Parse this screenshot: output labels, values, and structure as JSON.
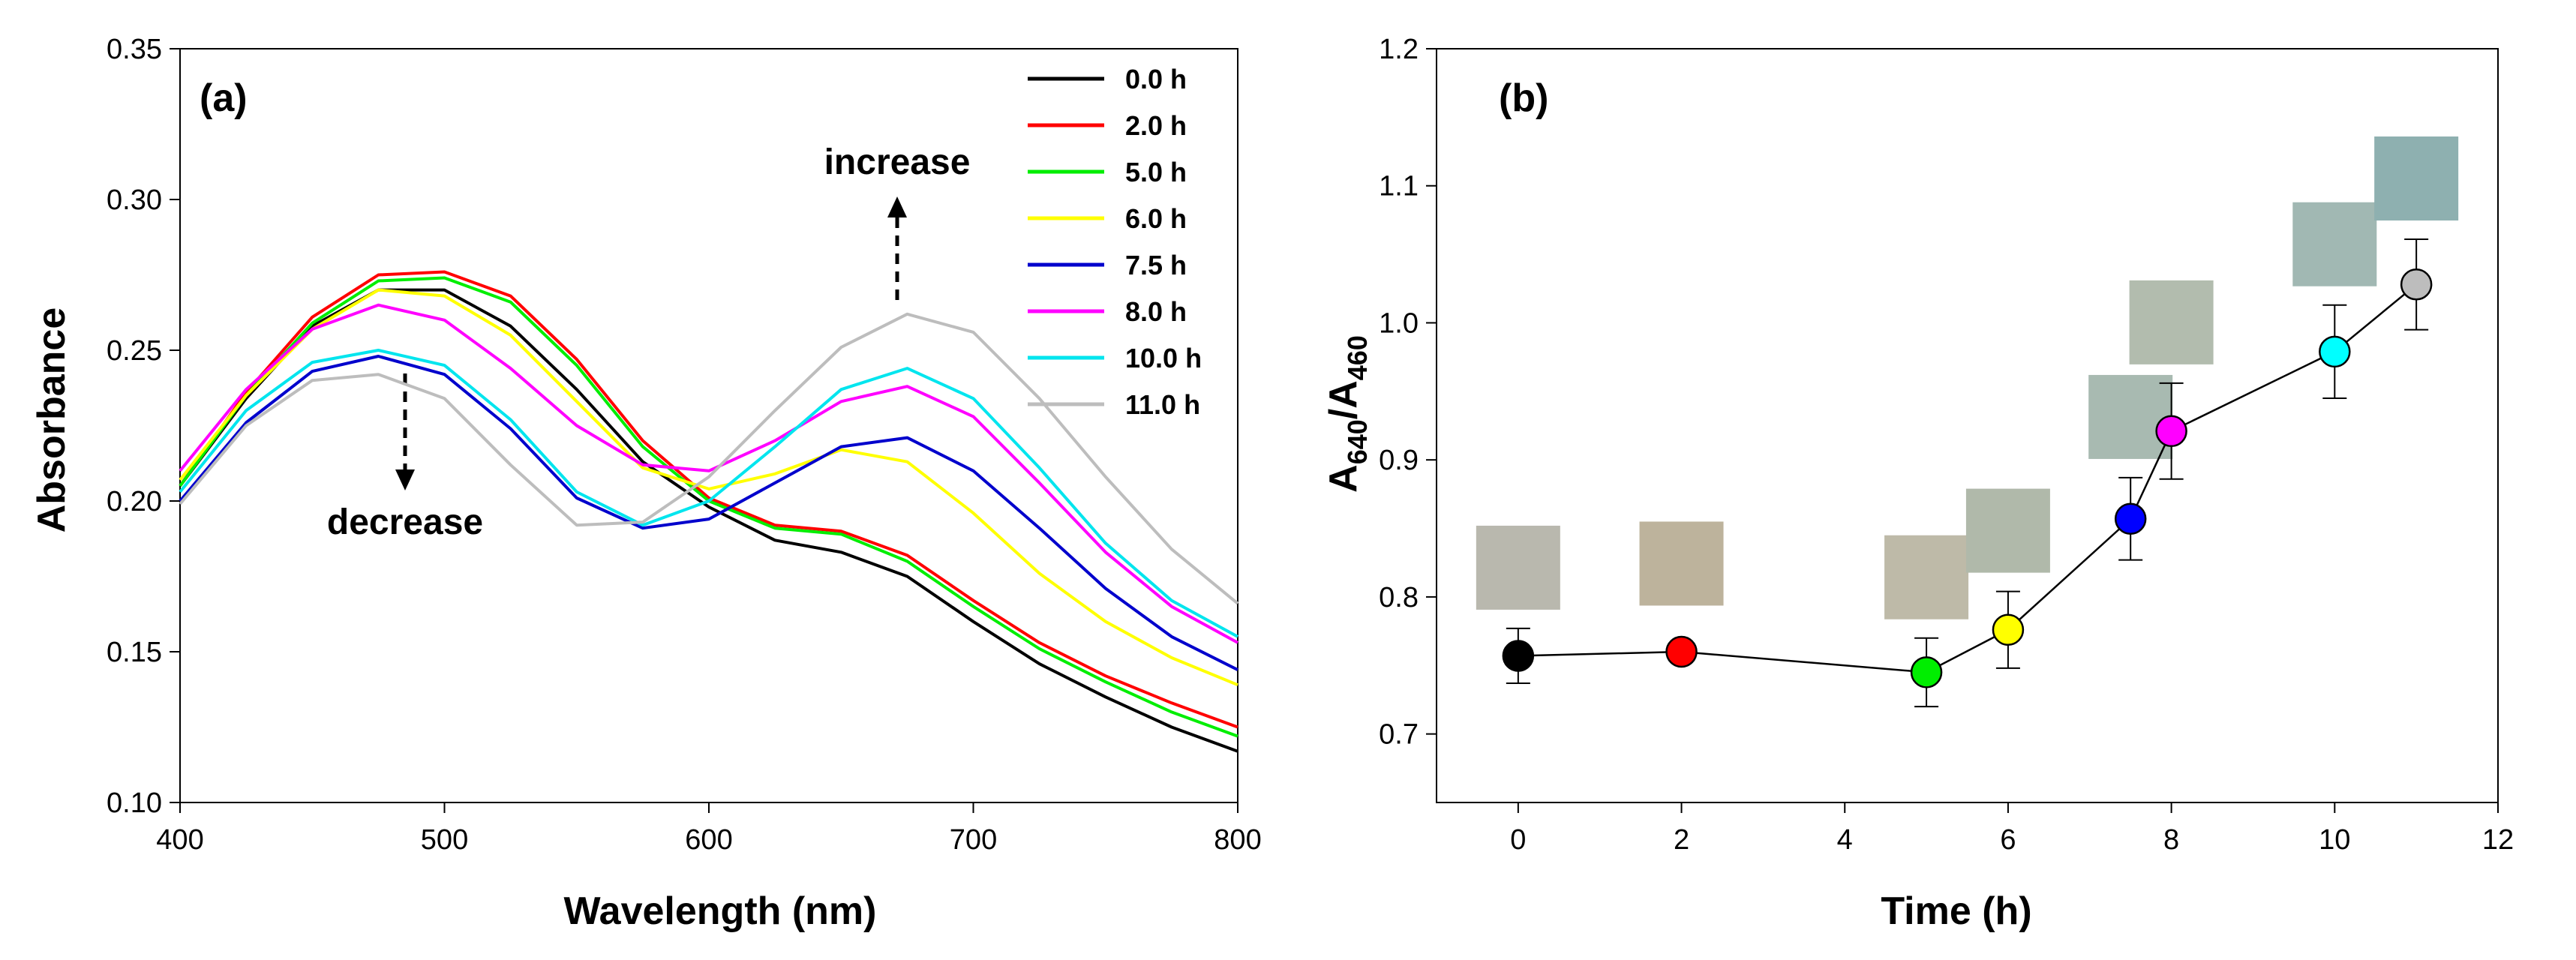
{
  "chart_data": [
    {
      "type": "line",
      "panel_label": "(a)",
      "xlabel": "Wavelength (nm)",
      "ylabel": "Absorbance",
      "xlim": [
        400,
        800
      ],
      "ylim": [
        0.1,
        0.35
      ],
      "xticks": [
        400,
        500,
        600,
        700,
        800
      ],
      "yticks": [
        "0.10",
        "0.15",
        "0.20",
        "0.25",
        "0.30",
        "0.35"
      ],
      "grid": false,
      "legend_position": "top-right",
      "x": [
        400,
        425,
        450,
        475,
        500,
        525,
        550,
        575,
        600,
        625,
        650,
        675,
        700,
        725,
        750,
        775,
        800
      ],
      "series": [
        {
          "name": "0.0 h",
          "color": "#000000",
          "values": [
            0.205,
            0.234,
            0.258,
            0.27,
            0.27,
            0.258,
            0.237,
            0.213,
            0.198,
            0.187,
            0.183,
            0.175,
            0.16,
            0.146,
            0.135,
            0.125,
            0.117
          ]
        },
        {
          "name": "2.0 h",
          "color": "#ff0000",
          "values": [
            0.205,
            0.236,
            0.261,
            0.275,
            0.276,
            0.268,
            0.247,
            0.22,
            0.201,
            0.192,
            0.19,
            0.182,
            0.167,
            0.153,
            0.142,
            0.133,
            0.125
          ]
        },
        {
          "name": "5.0 h",
          "color": "#00ee00",
          "values": [
            0.205,
            0.235,
            0.259,
            0.273,
            0.274,
            0.266,
            0.245,
            0.218,
            0.2,
            0.191,
            0.189,
            0.18,
            0.165,
            0.151,
            0.14,
            0.13,
            0.122
          ]
        },
        {
          "name": "6.0 h",
          "color": "#ffff00",
          "values": [
            0.207,
            0.235,
            0.257,
            0.27,
            0.268,
            0.255,
            0.233,
            0.211,
            0.204,
            0.209,
            0.217,
            0.213,
            0.196,
            0.176,
            0.16,
            0.148,
            0.139
          ]
        },
        {
          "name": "7.5 h",
          "color": "#0000cc",
          "values": [
            0.2,
            0.226,
            0.243,
            0.248,
            0.242,
            0.224,
            0.201,
            0.191,
            0.194,
            0.206,
            0.218,
            0.221,
            0.21,
            0.191,
            0.171,
            0.155,
            0.144
          ]
        },
        {
          "name": "8.0 h",
          "color": "#ff00ff",
          "values": [
            0.21,
            0.237,
            0.257,
            0.265,
            0.26,
            0.244,
            0.225,
            0.212,
            0.21,
            0.22,
            0.233,
            0.238,
            0.228,
            0.206,
            0.183,
            0.165,
            0.153
          ]
        },
        {
          "name": "10.0 h",
          "color": "#00e5ee",
          "values": [
            0.203,
            0.23,
            0.246,
            0.25,
            0.245,
            0.227,
            0.203,
            0.192,
            0.2,
            0.218,
            0.237,
            0.244,
            0.234,
            0.211,
            0.186,
            0.167,
            0.155
          ]
        },
        {
          "name": "11.0 h",
          "color": "#bdbdbd",
          "values": [
            0.199,
            0.225,
            0.24,
            0.242,
            0.234,
            0.212,
            0.192,
            0.193,
            0.208,
            0.23,
            0.251,
            0.262,
            0.256,
            0.234,
            0.208,
            0.184,
            0.166
          ]
        }
      ],
      "annotations": {
        "increase": "increase",
        "decrease": "decrease"
      }
    },
    {
      "type": "scatter",
      "panel_label": "(b)",
      "xlabel": "Time (h)",
      "ylabel_main": "A",
      "ylabel_sub1": "640",
      "ylabel_sep": "/A",
      "ylabel_sub2": "460",
      "xlim": [
        -1,
        12
      ],
      "ylim": [
        0.65,
        1.2
      ],
      "xticks": [
        0,
        2,
        4,
        6,
        8,
        10,
        12
      ],
      "yticks": [
        "0.7",
        "0.8",
        "0.9",
        "1.0",
        "1.1",
        "1.2"
      ],
      "grid": false,
      "points": [
        {
          "x": 0,
          "y": 0.757,
          "err": 0.02,
          "color": "#000000",
          "swatch": "#b9b8ae"
        },
        {
          "x": 2,
          "y": 0.76,
          "err": 0.0,
          "color": "#ff0000",
          "swatch": "#bdb39c"
        },
        {
          "x": 5,
          "y": 0.745,
          "err": 0.025,
          "color": "#00ee00",
          "swatch": "#bebaa8"
        },
        {
          "x": 6,
          "y": 0.776,
          "err": 0.028,
          "color": "#ffff00",
          "swatch": "#b0b9aa"
        },
        {
          "x": 7.5,
          "y": 0.857,
          "err": 0.03,
          "color": "#0000ff",
          "swatch": "#a8bab1"
        },
        {
          "x": 8,
          "y": 0.921,
          "err": 0.035,
          "color": "#ff00ff",
          "swatch": "#b2bcae"
        },
        {
          "x": 10,
          "y": 0.979,
          "err": 0.034,
          "color": "#00ffff",
          "swatch": "#a1b8b3"
        },
        {
          "x": 11,
          "y": 1.028,
          "err": 0.033,
          "color": "#bdbdbd",
          "swatch": "#8eb0b0"
        }
      ]
    }
  ]
}
